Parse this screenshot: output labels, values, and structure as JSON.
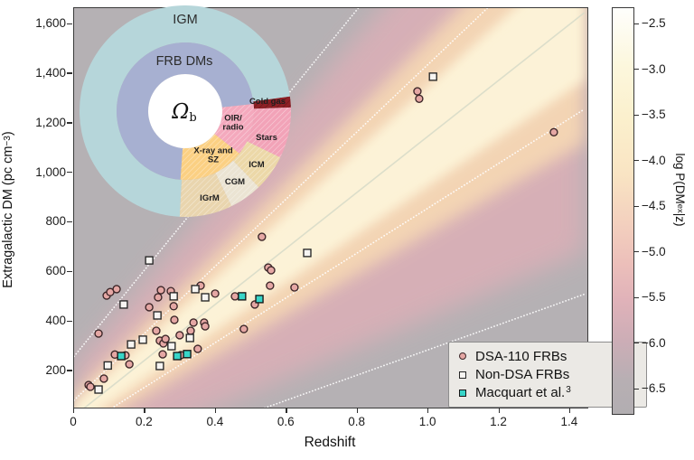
{
  "figure": {
    "background": "#ffffff",
    "plot_bg_gray": "#b5b1b4"
  },
  "chart_data": [
    {
      "type": "scatter",
      "xlabel": "Redshift",
      "ylabel_pre": "Extragalactic DM (pc cm",
      "ylabel_sup": "−3",
      "ylabel_post": ")",
      "xlim": [
        0,
        1.45
      ],
      "ylim": [
        54,
        1666
      ],
      "x_ticks": [
        {
          "v": 0,
          "label": "0"
        },
        {
          "v": 0.2,
          "label": "0.2"
        },
        {
          "v": 0.4,
          "label": "0.4"
        },
        {
          "v": 0.6,
          "label": "0.6"
        },
        {
          "v": 0.8,
          "label": "0.8"
        },
        {
          "v": 1.0,
          "label": "1.0"
        },
        {
          "v": 1.2,
          "label": "1.2"
        },
        {
          "v": 1.4,
          "label": "1.4"
        }
      ],
      "y_ticks": [
        {
          "v": 200,
          "label": "200"
        },
        {
          "v": 400,
          "label": "400"
        },
        {
          "v": 600,
          "label": "600"
        },
        {
          "v": 800,
          "label": "800"
        },
        {
          "v": 1000,
          "label": "1,000"
        },
        {
          "v": 1200,
          "label": "1,200"
        },
        {
          "v": 1400,
          "label": "1,400"
        },
        {
          "v": 1600,
          "label": "1,600"
        }
      ],
      "grid": false,
      "colorbar": {
        "label_pre": "log P(DM",
        "label_sub": "ex",
        "label_post": "|z)",
        "ticks": [
          {
            "v": -2.5,
            "label": "−2.5"
          },
          {
            "v": -3.0,
            "label": "−3.0"
          },
          {
            "v": -3.5,
            "label": "−3.5"
          },
          {
            "v": -4.0,
            "label": "−4.0"
          },
          {
            "v": -4.5,
            "label": "−4.5"
          },
          {
            "v": -5.0,
            "label": "−5.0"
          },
          {
            "v": -5.5,
            "label": "−5.5"
          },
          {
            "v": -6.0,
            "label": "−6.0"
          },
          {
            "v": -6.5,
            "label": "−6.5"
          }
        ],
        "range": [
          -6.8,
          -2.3
        ]
      },
      "density_band": {
        "median_dm_per_z": 1130,
        "median_intercept": 20,
        "inner_contour": {
          "frac_of_median": 0.2,
          "add": 60,
          "style": "dotted-white"
        },
        "outer_contour": {
          "frac_of_median": 0.55,
          "add": 230,
          "style": "dotted-white"
        },
        "median_style": "solid-pale",
        "core_color": "#fdf4d9",
        "mid_color": "#f6d8b4",
        "edge_color": "#dfafb7"
      },
      "legend": {
        "position": "lower right"
      },
      "series": [
        {
          "name": "DSA-110 FRBs",
          "sup": "",
          "marker": "circle",
          "fill": "#e5a7a4",
          "edge": "#3b2527",
          "points": [
            [
              0.041,
              145
            ],
            [
              0.046,
              138
            ],
            [
              0.069,
              353
            ],
            [
              0.084,
              171
            ],
            [
              0.092,
              506
            ],
            [
              0.102,
              520
            ],
            [
              0.115,
              268
            ],
            [
              0.12,
              532
            ],
            [
              0.145,
              265
            ],
            [
              0.156,
              229
            ],
            [
              0.212,
              459
            ],
            [
              0.232,
              364
            ],
            [
              0.237,
              499
            ],
            [
              0.242,
              324
            ],
            [
              0.245,
              528
            ],
            [
              0.25,
              269
            ],
            [
              0.252,
              313
            ],
            [
              0.258,
              331
            ],
            [
              0.273,
              524
            ],
            [
              0.281,
              463
            ],
            [
              0.283,
              408
            ],
            [
              0.298,
              346
            ],
            [
              0.301,
              266
            ],
            [
              0.329,
              364
            ],
            [
              0.337,
              397
            ],
            [
              0.349,
              291
            ],
            [
              0.357,
              546
            ],
            [
              0.367,
              397
            ],
            [
              0.37,
              382
            ],
            [
              0.398,
              514
            ],
            [
              0.454,
              503
            ],
            [
              0.479,
              371
            ],
            [
              0.51,
              470
            ],
            [
              0.53,
              743
            ],
            [
              0.548,
              619
            ],
            [
              0.553,
              546
            ],
            [
              0.556,
              608
            ],
            [
              0.622,
              539
            ],
            [
              0.969,
              1330
            ],
            [
              0.974,
              1300
            ],
            [
              1.354,
              1165
            ]
          ]
        },
        {
          "name": "Non-DSA FRBs",
          "sup": "",
          "marker": "square",
          "fill": "#f7f5f2",
          "edge": "#262626",
          "points": [
            [
              0.069,
              127
            ],
            [
              0.095,
              224
            ],
            [
              0.14,
              470
            ],
            [
              0.161,
              309
            ],
            [
              0.194,
              328
            ],
            [
              0.212,
              648
            ],
            [
              0.235,
              426
            ],
            [
              0.242,
              222
            ],
            [
              0.275,
              302
            ],
            [
              0.281,
              503
            ],
            [
              0.327,
              335
            ],
            [
              0.342,
              532
            ],
            [
              0.37,
              499
            ],
            [
              0.658,
              678
            ],
            [
              1.013,
              1389
            ]
          ]
        },
        {
          "name": "Macquart et al.",
          "sup": "3",
          "marker": "square",
          "fill": "#38d5c8",
          "edge": "#161616",
          "points": [
            [
              0.133,
              262
            ],
            [
              0.291,
              262
            ],
            [
              0.319,
              270
            ],
            [
              0.474,
              503
            ],
            [
              0.523,
              492
            ]
          ]
        }
      ]
    },
    {
      "type": "pie",
      "center_label_pre": "Ω",
      "center_label_sub": "b",
      "rings": {
        "outer": [
          {
            "label": "IGM",
            "start_deg": 183,
            "end_deg": 442,
            "share_pct": 71.9,
            "color": "#b6d6da",
            "hatch": false
          },
          {
            "label": "Cold gas",
            "start_deg": 82,
            "end_deg": 88,
            "share_pct": 1.7,
            "color": "#8e2026",
            "hatch": true
          },
          {
            "label": "Stars",
            "start_deg": 88,
            "end_deg": 116,
            "share_pct": 7.8,
            "color": "#f2a3b8",
            "hatch": true
          },
          {
            "label": "ICM",
            "start_deg": 116,
            "end_deg": 136,
            "share_pct": 5.6,
            "color": "#ecd8a8",
            "hatch": true
          },
          {
            "label": "CGM",
            "start_deg": 136,
            "end_deg": 154,
            "share_pct": 5.0,
            "color": "#ebe4d3",
            "hatch": true
          },
          {
            "label": "IGrM",
            "start_deg": 154,
            "end_deg": 183,
            "share_pct": 8.0,
            "color": "#e9d5ae",
            "hatch": true
          }
        ],
        "middle": [
          {
            "label": "FRB DMs",
            "start_deg": 184,
            "end_deg": 444,
            "share_pct": 72.2,
            "color": "#a7b0d1",
            "hatch": false
          },
          {
            "label": "OIR/radio",
            "start_deg": 84,
            "end_deg": 128,
            "share_pct": 12.2,
            "color": "#f4a9bd",
            "hatch": true
          },
          {
            "label": "X-ray and SZ",
            "start_deg": 128,
            "end_deg": 184,
            "share_pct": 15.6,
            "color": "#fbd083",
            "hatch": true
          }
        ]
      },
      "inset_labels": {
        "igm": "IGM",
        "frb_dms": "FRB DMs",
        "cold_gas": "Cold gas",
        "oir_1": "OIR/",
        "oir_2": "radio",
        "stars": "Stars",
        "xray_1": "X-ray and",
        "xray_2": "SZ",
        "icm": "ICM",
        "cgm": "CGM",
        "igrm": "IGrM"
      }
    }
  ]
}
